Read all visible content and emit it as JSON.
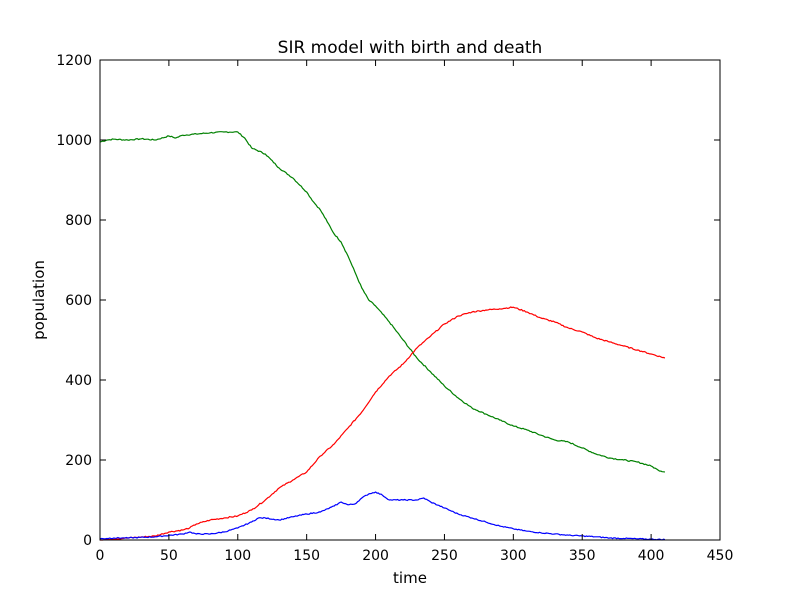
{
  "chart_data": {
    "type": "line",
    "title": "SIR model with birth and death",
    "xlabel": "time",
    "ylabel": "population",
    "xlim": [
      0,
      450
    ],
    "ylim": [
      0,
      1200
    ],
    "xticks": [
      "0",
      "50",
      "100",
      "150",
      "200",
      "250",
      "300",
      "350",
      "400",
      "450"
    ],
    "yticks": [
      "0",
      "200",
      "400",
      "600",
      "800",
      "1000",
      "1200"
    ],
    "grid": false,
    "legend": "none",
    "series": [
      {
        "color": "#008000",
        "x": [
          0,
          5,
          10,
          20,
          30,
          40,
          50,
          55,
          60,
          70,
          80,
          90,
          100,
          105,
          110,
          120,
          130,
          140,
          150,
          155,
          160,
          165,
          170,
          175,
          180,
          185,
          190,
          195,
          200,
          210,
          220,
          230,
          240,
          250,
          260,
          270,
          280,
          290,
          300,
          310,
          320,
          330,
          340,
          350,
          360,
          370,
          380,
          390,
          400,
          405,
          410
        ],
        "y": [
          995,
          1000,
          1002,
          1000,
          1003,
          1000,
          1010,
          1005,
          1012,
          1015,
          1018,
          1020,
          1020,
          1005,
          980,
          965,
          930,
          905,
          870,
          845,
          825,
          795,
          765,
          745,
          710,
          670,
          630,
          600,
          585,
          545,
          500,
          455,
          420,
          385,
          355,
          330,
          315,
          300,
          285,
          275,
          262,
          250,
          245,
          230,
          215,
          205,
          200,
          195,
          185,
          175,
          170
        ]
      },
      {
        "color": "#ff0000",
        "x": [
          0,
          20,
          40,
          50,
          60,
          65,
          70,
          80,
          90,
          100,
          110,
          120,
          130,
          140,
          150,
          160,
          170,
          180,
          190,
          200,
          210,
          220,
          230,
          240,
          250,
          260,
          270,
          280,
          290,
          300,
          310,
          320,
          330,
          340,
          350,
          360,
          370,
          380,
          390,
          400,
          410
        ],
        "y": [
          0,
          5,
          10,
          20,
          25,
          30,
          40,
          50,
          55,
          60,
          75,
          100,
          130,
          150,
          170,
          210,
          240,
          280,
          320,
          370,
          410,
          440,
          480,
          510,
          540,
          560,
          570,
          575,
          578,
          582,
          570,
          555,
          545,
          530,
          520,
          505,
          495,
          485,
          475,
          465,
          455
        ]
      },
      {
        "color": "#0000ff",
        "x": [
          0,
          10,
          20,
          40,
          60,
          65,
          70,
          80,
          90,
          100,
          110,
          115,
          120,
          130,
          140,
          150,
          160,
          170,
          175,
          180,
          185,
          190,
          195,
          200,
          205,
          210,
          220,
          230,
          235,
          240,
          250,
          260,
          270,
          280,
          290,
          300,
          310,
          320,
          330,
          340,
          350,
          360,
          370,
          380,
          390,
          400,
          410
        ],
        "y": [
          3,
          5,
          5,
          8,
          15,
          20,
          15,
          15,
          20,
          30,
          45,
          55,
          55,
          50,
          58,
          65,
          70,
          85,
          95,
          88,
          90,
          105,
          115,
          120,
          112,
          100,
          100,
          100,
          105,
          95,
          80,
          65,
          55,
          45,
          35,
          28,
          22,
          18,
          15,
          12,
          10,
          8,
          5,
          4,
          3,
          2,
          1
        ]
      }
    ]
  }
}
